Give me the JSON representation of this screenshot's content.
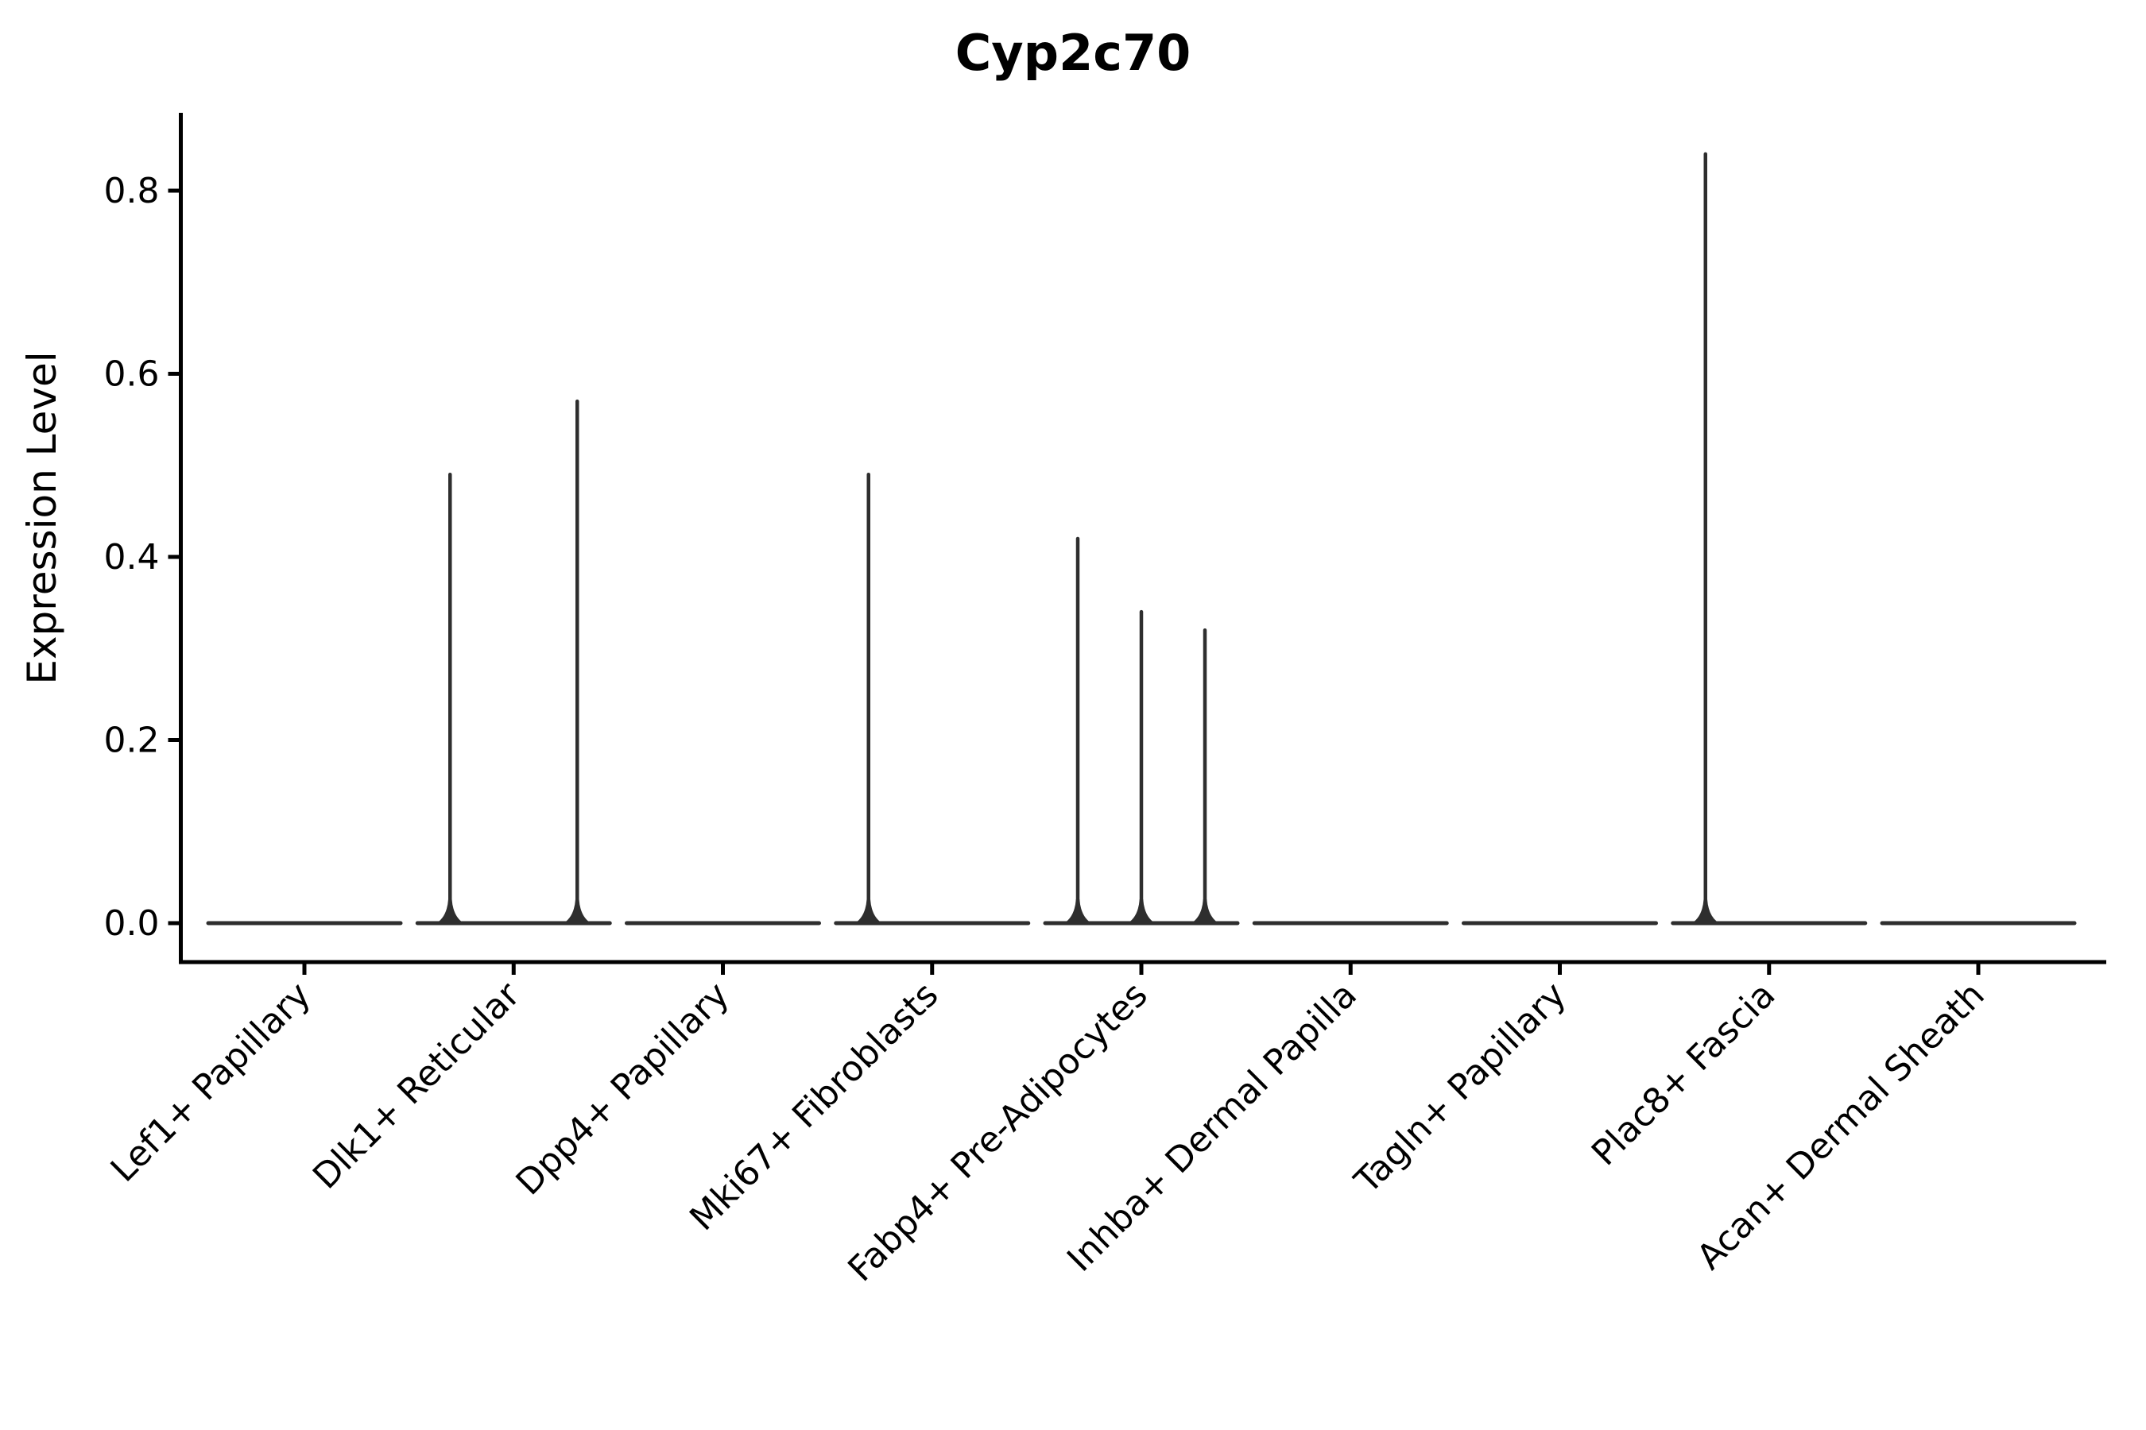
{
  "figure": {
    "title": "Cyp2c70",
    "background_color": "#ffffff",
    "text_color": "#000000",
    "spine_color": "#000000",
    "violin_color": "#2e2e2e"
  },
  "chart_data": {
    "type": "violin",
    "title": "Cyp2c70",
    "xlabel": "",
    "ylabel": "Expression Level",
    "categories": [
      "Lef1+ Papillary",
      "Dlk1+ Reticular",
      "Dpp4+ Papillary",
      "Mki67+ Fibroblasts",
      "Fabp4+ Pre-Adipocytes",
      "Inhba+ Dermal Papilla",
      "Tagln+ Papillary",
      "Plac8+ Fascia",
      "Acan+ Dermal Sheath"
    ],
    "groups_per_category": 3,
    "baseline_value": 0.0,
    "y_ticks": [
      "0.0",
      "0.2",
      "0.4",
      "0.6",
      "0.8"
    ],
    "y_tick_values": [
      0.0,
      0.2,
      0.4,
      0.6,
      0.8
    ],
    "ylim": [
      -0.043,
      0.885
    ],
    "legend": "none",
    "grid": false,
    "violins": [
      {
        "category": "Lef1+ Papillary",
        "spikes": []
      },
      {
        "category": "Dlk1+ Reticular",
        "spikes": [
          {
            "group": 0,
            "max": 0.49
          },
          {
            "group": 2,
            "max": 0.57
          }
        ]
      },
      {
        "category": "Dpp4+ Papillary",
        "spikes": []
      },
      {
        "category": "Mki67+ Fibroblasts",
        "spikes": [
          {
            "group": 0,
            "max": 0.49
          }
        ]
      },
      {
        "category": "Fabp4+ Pre-Adipocytes",
        "spikes": [
          {
            "group": 0,
            "max": 0.42
          },
          {
            "group": 1,
            "max": 0.34
          },
          {
            "group": 2,
            "max": 0.32
          }
        ]
      },
      {
        "category": "Inhba+ Dermal Papilla",
        "spikes": []
      },
      {
        "category": "Tagln+ Papillary",
        "spikes": []
      },
      {
        "category": "Plac8+ Fascia",
        "spikes": [
          {
            "group": 0,
            "max": 0.84
          }
        ]
      },
      {
        "category": "Acan+ Dermal Sheath",
        "spikes": []
      }
    ]
  }
}
